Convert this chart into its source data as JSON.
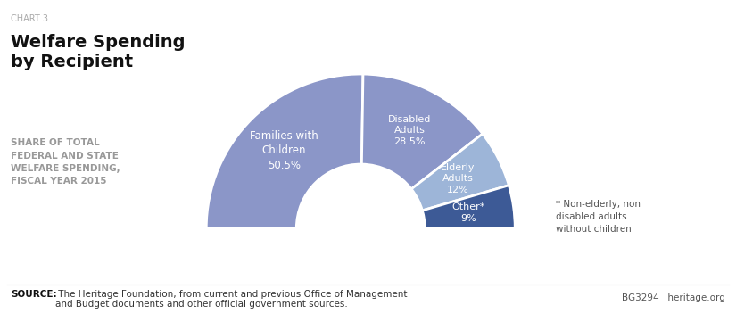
{
  "chart_label": "CHART 3",
  "title": "Welfare Spending\nby Recipient",
  "subtitle": "SHARE OF TOTAL\nFEDERAL AND STATE\nWELFARE SPENDING,\nFISCAL YEAR 2015",
  "segments": [
    {
      "label": "Families with\nChildren",
      "pct_label": "50.5%",
      "value": 50.5,
      "color": "#8b96c8"
    },
    {
      "label": "Disabled\nAdults",
      "pct_label": "28.5%",
      "value": 28.5,
      "color": "#8b96c8"
    },
    {
      "label": "Elderly\nAdults",
      "pct_label": "12%",
      "value": 12.0,
      "color": "#9db5d8"
    },
    {
      "label": "Other*",
      "pct_label": "9%",
      "value": 9.0,
      "color": "#3d5a96"
    }
  ],
  "annotation": "* Non-elderly, non\ndisabled adults\nwithout children",
  "source_bold": "SOURCE:",
  "source_text": " The Heritage Foundation, from current and previous Office of Management\nand Budget documents and other official government sources.",
  "branding": "BG3294   heritage.org",
  "bg_color": "#ffffff",
  "text_color_dark": "#1a1a1a",
  "text_color_gray": "#999999",
  "segment_text_color": "#ffffff",
  "divider_color": "#ffffff",
  "outer_r": 1.25,
  "inner_r": 0.52
}
